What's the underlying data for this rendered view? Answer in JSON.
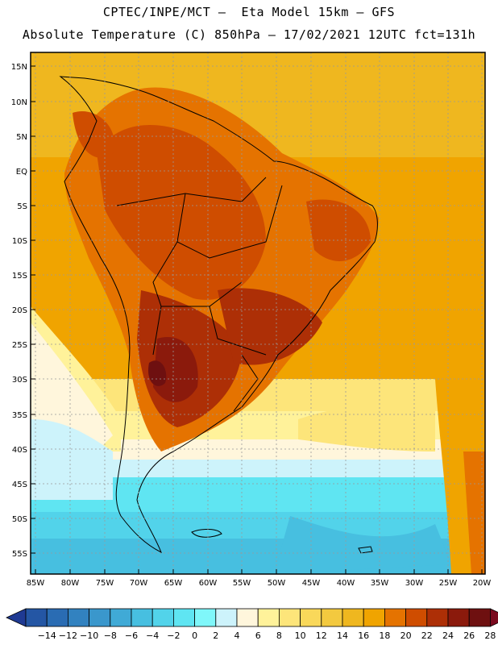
{
  "header": {
    "line1": "CPTEC/INPE/MCT –  Eta Model 15km – GFS",
    "line2": "Absolute Temperature (C) 850hPa – 17/02/2021 12UTC fct=131h"
  },
  "axes": {
    "lat_labels": [
      "15N",
      "10N",
      "5N",
      "EQ",
      "5S",
      "10S",
      "15S",
      "20S",
      "25S",
      "30S",
      "35S",
      "40S",
      "45S",
      "50S",
      "55S"
    ],
    "lon_labels": [
      "85W",
      "80W",
      "75W",
      "70W",
      "65W",
      "60W",
      "55W",
      "50W",
      "45W",
      "40W",
      "35W",
      "30W",
      "25W",
      "20W"
    ]
  },
  "legend": {
    "labels": [
      "-14",
      "-12",
      "-10",
      "-8",
      "-6",
      "-4",
      "-2",
      "0",
      "2",
      "4",
      "6",
      "8",
      "10",
      "12",
      "14",
      "16",
      "18",
      "20",
      "22",
      "24",
      "26",
      "28"
    ],
    "colors": [
      "#1f3a93",
      "#2456a4",
      "#2a6cb3",
      "#3282c0",
      "#3a97cc",
      "#40aad6",
      "#47bfe0",
      "#52d3ea",
      "#5fe5f2",
      "#7ff7fa",
      "#cdf3fb",
      "#fff6dc",
      "#fff29a",
      "#fde57a",
      "#f9d85a",
      "#f3c93f",
      "#efb71f",
      "#f0a400",
      "#e57300",
      "#cf4d00",
      "#ad2f06",
      "#8b1a0c",
      "#6e1010",
      "#7a0a1e"
    ]
  }
}
